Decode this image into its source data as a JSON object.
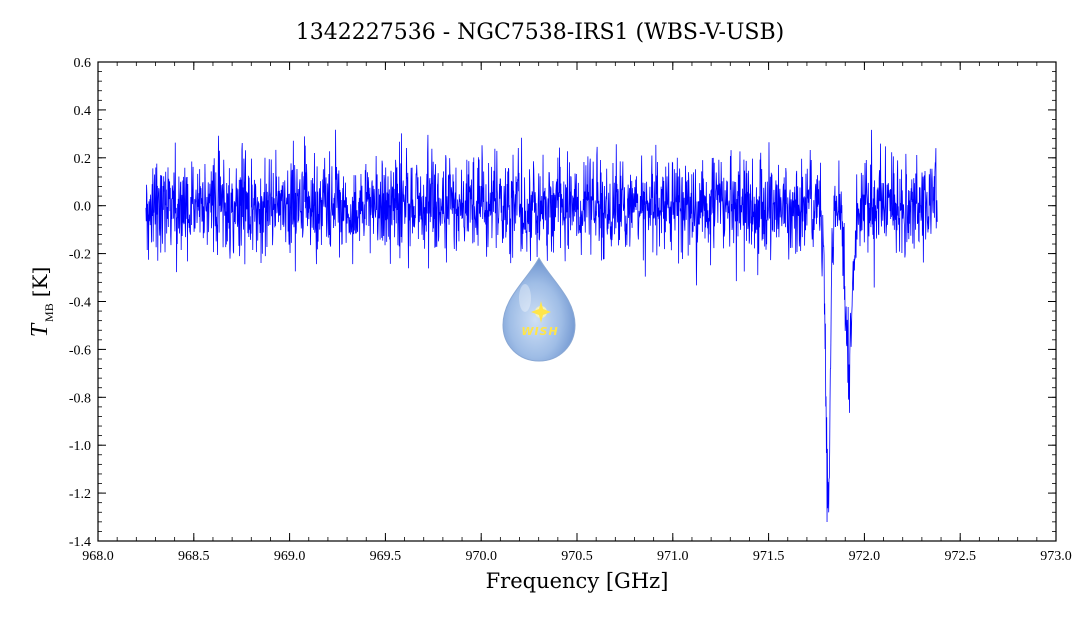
{
  "chart_data": {
    "type": "line",
    "title": "1342227536 - NGC7538-IRS1 (WBS-V-USB)",
    "xlabel": "Frequency [GHz]",
    "ylabel_symbol": "T",
    "ylabel_subscript": "MB",
    "ylabel_unit": "[K]",
    "xlim": [
      968.0,
      973.0
    ],
    "ylim": [
      -1.4,
      0.6
    ],
    "x_ticks": [
      "968.0",
      "968.5",
      "969.0",
      "969.5",
      "970.0",
      "970.5",
      "971.0",
      "971.5",
      "972.0",
      "972.5",
      "973.0"
    ],
    "y_ticks": [
      "-1.4",
      "-1.2",
      "-1.0",
      "-0.8",
      "-0.6",
      "-0.4",
      "-0.2",
      "0.0",
      "0.2",
      "0.4",
      "0.6"
    ],
    "grid": false,
    "series": [
      {
        "color": "#0000ff",
        "x_range": [
          968.25,
          972.38
        ],
        "baseline": 0.0,
        "noise_rms": 0.1,
        "absorption_features": [
          {
            "center": 971.81,
            "depth": -1.2
          },
          {
            "center": 971.92,
            "depth": -0.7
          }
        ]
      }
    ]
  },
  "logo": {
    "text": "WISH",
    "icon": "water-drop-star-icon"
  }
}
